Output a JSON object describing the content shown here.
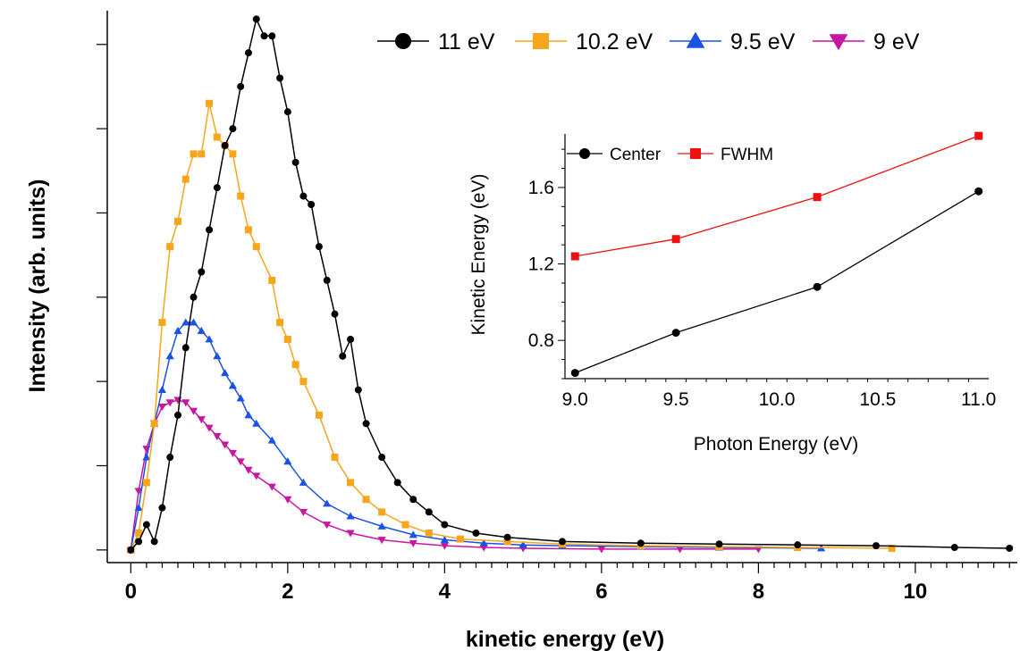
{
  "chart_data": [
    {
      "type": "scatter",
      "title": "",
      "xlabel": "kinetic energy (eV)",
      "ylabel": "Intensity (arb. units)",
      "xlim": [
        -0.3,
        11.3
      ],
      "ylim": [
        -0.15,
        6.4
      ],
      "x_ticks": [
        0,
        2,
        4,
        6,
        8,
        10
      ],
      "x_tick_labels": [
        "0",
        "2",
        "4",
        "6",
        "8",
        "10"
      ],
      "y_ticks": [
        0,
        1,
        2,
        3,
        4,
        5,
        6
      ],
      "y_tick_labels_shown": false,
      "legend_position": "top",
      "series": [
        {
          "name": "11 eV",
          "color": "#000000",
          "marker": "circle",
          "points": [
            [
              0.0,
              0.0
            ],
            [
              0.1,
              0.1
            ],
            [
              0.2,
              0.3
            ],
            [
              0.3,
              0.1
            ],
            [
              0.4,
              0.5
            ],
            [
              0.5,
              1.1
            ],
            [
              0.6,
              1.6
            ],
            [
              0.7,
              2.4
            ],
            [
              0.8,
              3.0
            ],
            [
              0.9,
              3.3
            ],
            [
              1.0,
              3.8
            ],
            [
              1.1,
              4.3
            ],
            [
              1.2,
              4.8
            ],
            [
              1.3,
              5.0
            ],
            [
              1.4,
              5.5
            ],
            [
              1.5,
              5.9
            ],
            [
              1.6,
              6.3
            ],
            [
              1.7,
              6.1
            ],
            [
              1.8,
              6.1
            ],
            [
              1.9,
              5.6
            ],
            [
              2.0,
              5.2
            ],
            [
              2.1,
              4.6
            ],
            [
              2.2,
              4.2
            ],
            [
              2.3,
              4.1
            ],
            [
              2.4,
              3.6
            ],
            [
              2.5,
              3.2
            ],
            [
              2.6,
              2.8
            ],
            [
              2.7,
              2.3
            ],
            [
              2.8,
              2.5
            ],
            [
              2.9,
              1.9
            ],
            [
              3.0,
              1.5
            ],
            [
              3.2,
              1.1
            ],
            [
              3.4,
              0.8
            ],
            [
              3.6,
              0.6
            ],
            [
              3.8,
              0.45
            ],
            [
              4.0,
              0.3
            ],
            [
              4.4,
              0.2
            ],
            [
              4.8,
              0.15
            ],
            [
              5.5,
              0.1
            ],
            [
              6.5,
              0.08
            ],
            [
              7.5,
              0.07
            ],
            [
              8.5,
              0.06
            ],
            [
              9.5,
              0.05
            ],
            [
              10.5,
              0.03
            ],
            [
              11.2,
              0.02
            ]
          ]
        },
        {
          "name": "10.2 eV",
          "color": "#f7a51c",
          "marker": "square",
          "points": [
            [
              0.0,
              0.0
            ],
            [
              0.1,
              0.2
            ],
            [
              0.2,
              0.8
            ],
            [
              0.3,
              1.5
            ],
            [
              0.4,
              2.7
            ],
            [
              0.5,
              3.6
            ],
            [
              0.6,
              3.9
            ],
            [
              0.7,
              4.4
            ],
            [
              0.8,
              4.7
            ],
            [
              0.9,
              4.7
            ],
            [
              1.0,
              5.3
            ],
            [
              1.1,
              4.9
            ],
            [
              1.2,
              4.8
            ],
            [
              1.3,
              4.7
            ],
            [
              1.4,
              4.2
            ],
            [
              1.5,
              3.8
            ],
            [
              1.6,
              3.6
            ],
            [
              1.8,
              3.2
            ],
            [
              1.9,
              2.7
            ],
            [
              2.0,
              2.5
            ],
            [
              2.1,
              2.2
            ],
            [
              2.2,
              2.0
            ],
            [
              2.4,
              1.6
            ],
            [
              2.6,
              1.1
            ],
            [
              2.8,
              0.8
            ],
            [
              3.0,
              0.6
            ],
            [
              3.2,
              0.45
            ],
            [
              3.5,
              0.3
            ],
            [
              3.8,
              0.2
            ],
            [
              4.2,
              0.13
            ],
            [
              4.8,
              0.1
            ],
            [
              5.5,
              0.07
            ],
            [
              6.5,
              0.05
            ],
            [
              7.5,
              0.04
            ],
            [
              8.5,
              0.03
            ],
            [
              9.7,
              0.02
            ]
          ]
        },
        {
          "name": "9.5 eV",
          "color": "#1b52e6",
          "marker": "triangle-up",
          "points": [
            [
              0.0,
              0.0
            ],
            [
              0.1,
              0.5
            ],
            [
              0.2,
              1.1
            ],
            [
              0.3,
              1.5
            ],
            [
              0.4,
              1.9
            ],
            [
              0.5,
              2.3
            ],
            [
              0.6,
              2.6
            ],
            [
              0.7,
              2.7
            ],
            [
              0.8,
              2.7
            ],
            [
              0.9,
              2.6
            ],
            [
              1.0,
              2.5
            ],
            [
              1.1,
              2.3
            ],
            [
              1.2,
              2.1
            ],
            [
              1.3,
              1.95
            ],
            [
              1.4,
              1.8
            ],
            [
              1.5,
              1.6
            ],
            [
              1.6,
              1.5
            ],
            [
              1.8,
              1.3
            ],
            [
              2.0,
              1.05
            ],
            [
              2.2,
              0.8
            ],
            [
              2.5,
              0.55
            ],
            [
              2.8,
              0.4
            ],
            [
              3.2,
              0.28
            ],
            [
              3.6,
              0.18
            ],
            [
              4.0,
              0.12
            ],
            [
              4.5,
              0.08
            ],
            [
              5.0,
              0.06
            ],
            [
              5.5,
              0.05
            ],
            [
              6.5,
              0.04
            ],
            [
              7.5,
              0.03
            ],
            [
              8.8,
              0.02
            ]
          ]
        },
        {
          "name": "9 eV",
          "color": "#c616a2",
          "marker": "triangle-down",
          "points": [
            [
              0.0,
              0.0
            ],
            [
              0.1,
              0.7
            ],
            [
              0.2,
              1.2
            ],
            [
              0.3,
              1.5
            ],
            [
              0.4,
              1.7
            ],
            [
              0.5,
              1.75
            ],
            [
              0.6,
              1.78
            ],
            [
              0.7,
              1.75
            ],
            [
              0.8,
              1.65
            ],
            [
              0.9,
              1.55
            ],
            [
              1.0,
              1.45
            ],
            [
              1.1,
              1.35
            ],
            [
              1.2,
              1.25
            ],
            [
              1.3,
              1.15
            ],
            [
              1.4,
              1.05
            ],
            [
              1.5,
              0.95
            ],
            [
              1.6,
              0.88
            ],
            [
              1.8,
              0.75
            ],
            [
              2.0,
              0.6
            ],
            [
              2.2,
              0.45
            ],
            [
              2.5,
              0.3
            ],
            [
              2.8,
              0.2
            ],
            [
              3.2,
              0.12
            ],
            [
              3.6,
              0.08
            ],
            [
              4.0,
              0.05
            ],
            [
              4.5,
              0.03
            ],
            [
              5.0,
              0.02
            ],
            [
              6.0,
              0.01
            ],
            [
              7.0,
              0.01
            ],
            [
              8.0,
              0.01
            ]
          ]
        }
      ]
    },
    {
      "type": "line",
      "title": "",
      "xlabel": "Photon Energy (eV)",
      "ylabel": "Kinetic Energy (eV)",
      "xlim": [
        8.95,
        11.05
      ],
      "ylim": [
        0.6,
        1.88
      ],
      "x_ticks": [
        9.0,
        9.5,
        10.0,
        10.5,
        11.0
      ],
      "x_tick_labels": [
        "9.0",
        "9.5",
        "10.0",
        "10.5",
        "11.0"
      ],
      "y_ticks": [
        0.8,
        1.2,
        1.6
      ],
      "y_tick_labels": [
        "0.8",
        "1.2",
        "1.6"
      ],
      "legend_position": "top-left",
      "series": [
        {
          "name": "Center",
          "color": "#000000",
          "marker": "circle",
          "x": [
            9.0,
            9.5,
            10.2,
            11.0
          ],
          "values": [
            0.63,
            0.84,
            1.08,
            1.58
          ]
        },
        {
          "name": "FWHM",
          "color": "#ee1111",
          "marker": "square",
          "x": [
            9.0,
            9.5,
            10.2,
            11.0
          ],
          "values": [
            1.24,
            1.33,
            1.55,
            1.87
          ]
        }
      ]
    }
  ]
}
